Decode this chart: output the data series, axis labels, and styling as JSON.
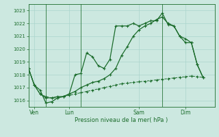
{
  "xlabel": "Pression niveau de la mer( hPa )",
  "ylim": [
    1015.5,
    1023.5
  ],
  "yticks": [
    1016,
    1017,
    1018,
    1019,
    1020,
    1021,
    1022,
    1023
  ],
  "background_color": "#cce8e0",
  "plot_bg_color": "#cce8e0",
  "grid_color": "#aad4cc",
  "line_color": "#1a6b2a",
  "day_labels": [
    "Ven",
    "Lun",
    "Sam",
    "Dim"
  ],
  "day_positions": [
    0.5,
    3.5,
    9.5,
    13.5
  ],
  "vline_positions": [
    1.5,
    4.5,
    11.5
  ],
  "xlim": [
    0,
    16
  ],
  "line1_x": [
    0.0,
    0.5,
    1.0,
    1.5,
    2.0,
    2.5,
    3.0,
    3.5,
    4.0,
    4.5,
    5.0,
    5.5,
    6.0,
    6.5,
    7.0,
    7.5,
    8.0,
    8.5,
    9.0,
    9.5,
    10.0,
    10.5,
    11.0,
    11.5,
    12.0,
    12.5,
    13.0,
    13.5,
    14.0,
    14.5,
    15.0
  ],
  "line1_y": [
    1018.5,
    1017.2,
    1016.8,
    1015.8,
    1015.9,
    1016.2,
    1016.3,
    1016.5,
    1018.0,
    1018.1,
    1019.7,
    1019.4,
    1018.7,
    1018.5,
    1019.2,
    1021.8,
    1021.8,
    1021.8,
    1022.0,
    1021.8,
    1022.0,
    1022.2,
    1022.2,
    1022.8,
    1021.9,
    1021.8,
    1021.0,
    1020.8,
    1020.5,
    1018.8,
    1017.8
  ],
  "line2_x": [
    0.0,
    0.5,
    1.0,
    1.5,
    2.0,
    2.5,
    3.0,
    3.5,
    4.0,
    4.5,
    5.0,
    5.5,
    6.0,
    6.5,
    7.0,
    7.5,
    8.0,
    8.5,
    9.0,
    9.5,
    10.0,
    10.5,
    11.0,
    11.5,
    12.0,
    12.5,
    13.0,
    13.5,
    14.0,
    14.5,
    15.0
  ],
  "line2_y": [
    1018.5,
    1017.2,
    1016.5,
    1016.3,
    1016.2,
    1016.2,
    1016.3,
    1016.4,
    1016.5,
    1016.6,
    1016.7,
    1016.8,
    1016.9,
    1017.0,
    1017.1,
    1017.2,
    1017.3,
    1017.35,
    1017.4,
    1017.45,
    1017.5,
    1017.55,
    1017.6,
    1017.65,
    1017.7,
    1017.75,
    1017.8,
    1017.85,
    1017.9,
    1017.85,
    1017.8
  ],
  "line3_x": [
    0.0,
    0.5,
    1.0,
    1.5,
    2.0,
    2.5,
    3.0,
    3.5,
    4.0,
    4.5,
    5.0,
    5.5,
    6.0,
    6.5,
    7.0,
    7.5,
    8.0,
    8.5,
    9.0,
    9.5,
    10.0,
    10.5,
    11.0,
    11.5,
    12.0,
    12.5,
    13.0,
    13.5,
    14.0,
    14.5,
    15.0
  ],
  "line3_y": [
    1018.5,
    1017.2,
    1016.5,
    1016.2,
    1016.2,
    1016.3,
    1016.3,
    1016.5,
    1016.7,
    1017.0,
    1017.2,
    1017.4,
    1017.5,
    1017.7,
    1018.0,
    1018.5,
    1019.5,
    1020.2,
    1021.0,
    1021.5,
    1021.8,
    1022.0,
    1022.3,
    1022.5,
    1022.0,
    1021.8,
    1021.0,
    1020.5,
    1020.5,
    1018.8,
    1017.8
  ]
}
